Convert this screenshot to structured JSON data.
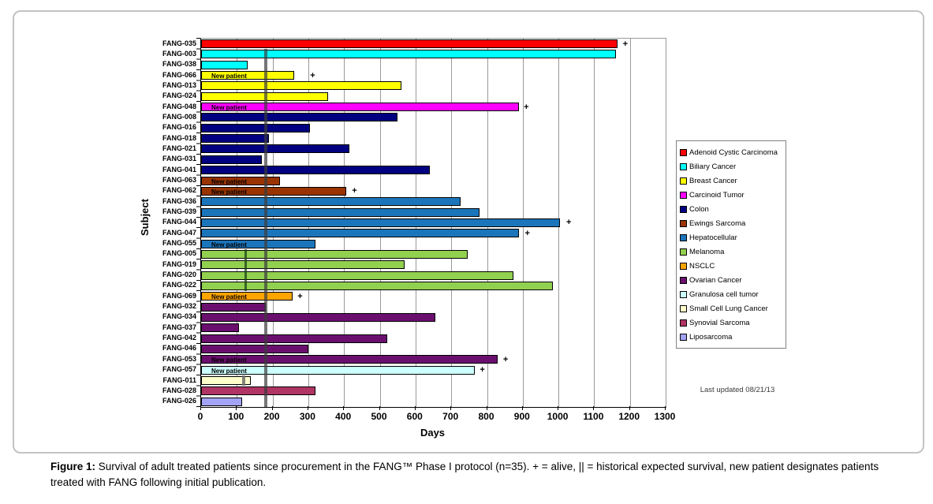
{
  "axis": {
    "x_title": "Days",
    "y_title": "Subject"
  },
  "footer": {
    "last_updated": "Last updated 08/21/13"
  },
  "caption": {
    "label": "Figure 1:",
    "text": " Survival of adult treated patients since procurement in the FANG™ Phase I protocol (n=35).  + = alive,  || = historical expected survival, new patient designates patients treated with FANG following initial publication."
  },
  "chart_data": {
    "type": "bar",
    "orientation": "horizontal",
    "xlabel": "Days",
    "ylabel": "Subject",
    "x_axis": {
      "min": 0,
      "max": 1300,
      "ticks": [
        0,
        100,
        200,
        300,
        400,
        500,
        600,
        700,
        800,
        900,
        1000,
        1100,
        1200,
        1300
      ]
    },
    "grid": true,
    "legend_position": "right",
    "legend": [
      {
        "label": "Adenoid Cystic Carcinoma",
        "color": "#FF0000"
      },
      {
        "label": "Biliary Cancer",
        "color": "#00FFFF"
      },
      {
        "label": "Breast Cancer",
        "color": "#FFFF00"
      },
      {
        "label": "Carcinoid Tumor",
        "color": "#FF00FF"
      },
      {
        "label": "Colon",
        "color": "#000080"
      },
      {
        "label": "Ewings Sarcoma",
        "color": "#993300"
      },
      {
        "label": "Hepatocellular",
        "color": "#1B75BB"
      },
      {
        "label": "Melanoma",
        "color": "#92D050"
      },
      {
        "label": "NSCLC",
        "color": "#FFA500"
      },
      {
        "label": "Ovarian Cancer",
        "color": "#6B0F6F"
      },
      {
        "label": "Granulosa cell tumor",
        "color": "#CCFFFF"
      },
      {
        "label": "Small Cell Lung Cancer",
        "color": "#FFFFCC"
      },
      {
        "label": "Synovial Sarcoma",
        "color": "#B03564"
      },
      {
        "label": "Liposarcoma",
        "color": "#A3A3F7"
      }
    ],
    "new_patient_text": "New patient",
    "alive_marker_text": "+",
    "rows": [
      {
        "subject": "FANG-035",
        "cancer": "Adenoid Cystic Carcinoma",
        "days": 1165,
        "alive": true,
        "plus_at": 1180,
        "new_patient": false
      },
      {
        "subject": "FANG-003",
        "cancer": "Biliary Cancer",
        "days": 1160,
        "alive": false,
        "new_patient": false
      },
      {
        "subject": "FANG-038",
        "cancer": "Biliary Cancer",
        "days": 130,
        "alive": false,
        "new_patient": false
      },
      {
        "subject": "FANG-066",
        "cancer": "Breast Cancer",
        "days": 260,
        "alive": true,
        "plus_at": 305,
        "new_patient": true
      },
      {
        "subject": "FANG-013",
        "cancer": "Breast Cancer",
        "days": 560,
        "alive": false,
        "new_patient": false
      },
      {
        "subject": "FANG-024",
        "cancer": "Breast Cancer",
        "days": 355,
        "alive": false,
        "new_patient": false
      },
      {
        "subject": "FANG-048",
        "cancer": "Carcinoid Tumor",
        "days": 890,
        "alive": true,
        "plus_at": 903,
        "new_patient": true
      },
      {
        "subject": "FANG-008",
        "cancer": "Colon",
        "days": 550,
        "alive": false,
        "new_patient": false
      },
      {
        "subject": "FANG-016",
        "cancer": "Colon",
        "days": 305,
        "alive": false,
        "new_patient": false
      },
      {
        "subject": "FANG-018",
        "cancer": "Colon",
        "days": 190,
        "alive": false,
        "new_patient": false
      },
      {
        "subject": "FANG-021",
        "cancer": "Colon",
        "days": 415,
        "alive": false,
        "new_patient": false
      },
      {
        "subject": "FANG-031",
        "cancer": "Colon",
        "days": 170,
        "alive": false,
        "new_patient": false
      },
      {
        "subject": "FANG-041",
        "cancer": "Colon",
        "days": 640,
        "alive": false,
        "new_patient": false
      },
      {
        "subject": "FANG-063",
        "cancer": "Ewings Sarcoma",
        "days": 220,
        "alive": false,
        "new_patient": true
      },
      {
        "subject": "FANG-062",
        "cancer": "Ewings Sarcoma",
        "days": 405,
        "alive": true,
        "plus_at": 422,
        "new_patient": true
      },
      {
        "subject": "FANG-036",
        "cancer": "Hepatocellular",
        "days": 725,
        "alive": false,
        "new_patient": false
      },
      {
        "subject": "FANG-039",
        "cancer": "Hepatocellular",
        "days": 780,
        "alive": false,
        "new_patient": false
      },
      {
        "subject": "FANG-044",
        "cancer": "Hepatocellular",
        "days": 1005,
        "alive": true,
        "plus_at": 1022,
        "new_patient": false
      },
      {
        "subject": "FANG-047",
        "cancer": "Hepatocellular",
        "days": 890,
        "alive": true,
        "plus_at": 906,
        "new_patient": false
      },
      {
        "subject": "FANG-055",
        "cancer": "Hepatocellular",
        "days": 320,
        "alive": false,
        "new_patient": true
      },
      {
        "subject": "FANG-005",
        "cancer": "Melanoma",
        "days": 745,
        "alive": false,
        "new_patient": false
      },
      {
        "subject": "FANG-019",
        "cancer": "Melanoma",
        "days": 570,
        "alive": false,
        "new_patient": false
      },
      {
        "subject": "FANG-020",
        "cancer": "Melanoma",
        "days": 875,
        "alive": false,
        "new_patient": false
      },
      {
        "subject": "FANG-022",
        "cancer": "Melanoma",
        "days": 985,
        "alive": false,
        "new_patient": false
      },
      {
        "subject": "FANG-069",
        "cancer": "NSCLC",
        "days": 255,
        "alive": true,
        "plus_at": 270,
        "new_patient": true
      },
      {
        "subject": "FANG-032",
        "cancer": "Ovarian Cancer",
        "days": 180,
        "alive": false,
        "new_patient": false
      },
      {
        "subject": "FANG-034",
        "cancer": "Ovarian Cancer",
        "days": 655,
        "alive": false,
        "new_patient": false
      },
      {
        "subject": "FANG-037",
        "cancer": "Ovarian Cancer",
        "days": 105,
        "alive": false,
        "new_patient": false
      },
      {
        "subject": "FANG-042",
        "cancer": "Ovarian Cancer",
        "days": 520,
        "alive": false,
        "new_patient": false
      },
      {
        "subject": "FANG-046",
        "cancer": "Ovarian Cancer",
        "days": 300,
        "alive": false,
        "new_patient": false
      },
      {
        "subject": "FANG-053",
        "cancer": "Ovarian Cancer",
        "days": 830,
        "alive": true,
        "plus_at": 845,
        "new_patient": true
      },
      {
        "subject": "FANG-057",
        "cancer": "Granulosa cell tumor",
        "days": 765,
        "alive": true,
        "plus_at": 780,
        "new_patient": true
      },
      {
        "subject": "FANG-011",
        "cancer": "Small Cell Lung Cancer",
        "days": 140,
        "alive": false,
        "new_patient": false
      },
      {
        "subject": "FANG-028",
        "cancer": "Synovial Sarcoma",
        "days": 320,
        "alive": false,
        "new_patient": false
      },
      {
        "subject": "FANG-026",
        "cancer": "Liposarcoma",
        "days": 115,
        "alive": false,
        "new_patient": false
      }
    ],
    "expected_survival_markers": [
      {
        "days": 180,
        "from_subject": "FANG-003",
        "to_subject": "FANG-026",
        "to_axis": true,
        "color": "rgba(60,60,60,0.70)",
        "width": 4
      },
      {
        "days": 125,
        "from_subject": "FANG-005",
        "to_subject": "FANG-022",
        "to_axis": false,
        "color": "rgba(25,65,20,0.75)",
        "width": 3
      },
      {
        "days": 120,
        "from_subject": "FANG-011",
        "to_subject": "FANG-011",
        "to_axis": false,
        "color": "rgba(110,110,110,0.85)",
        "width": 4
      }
    ]
  }
}
